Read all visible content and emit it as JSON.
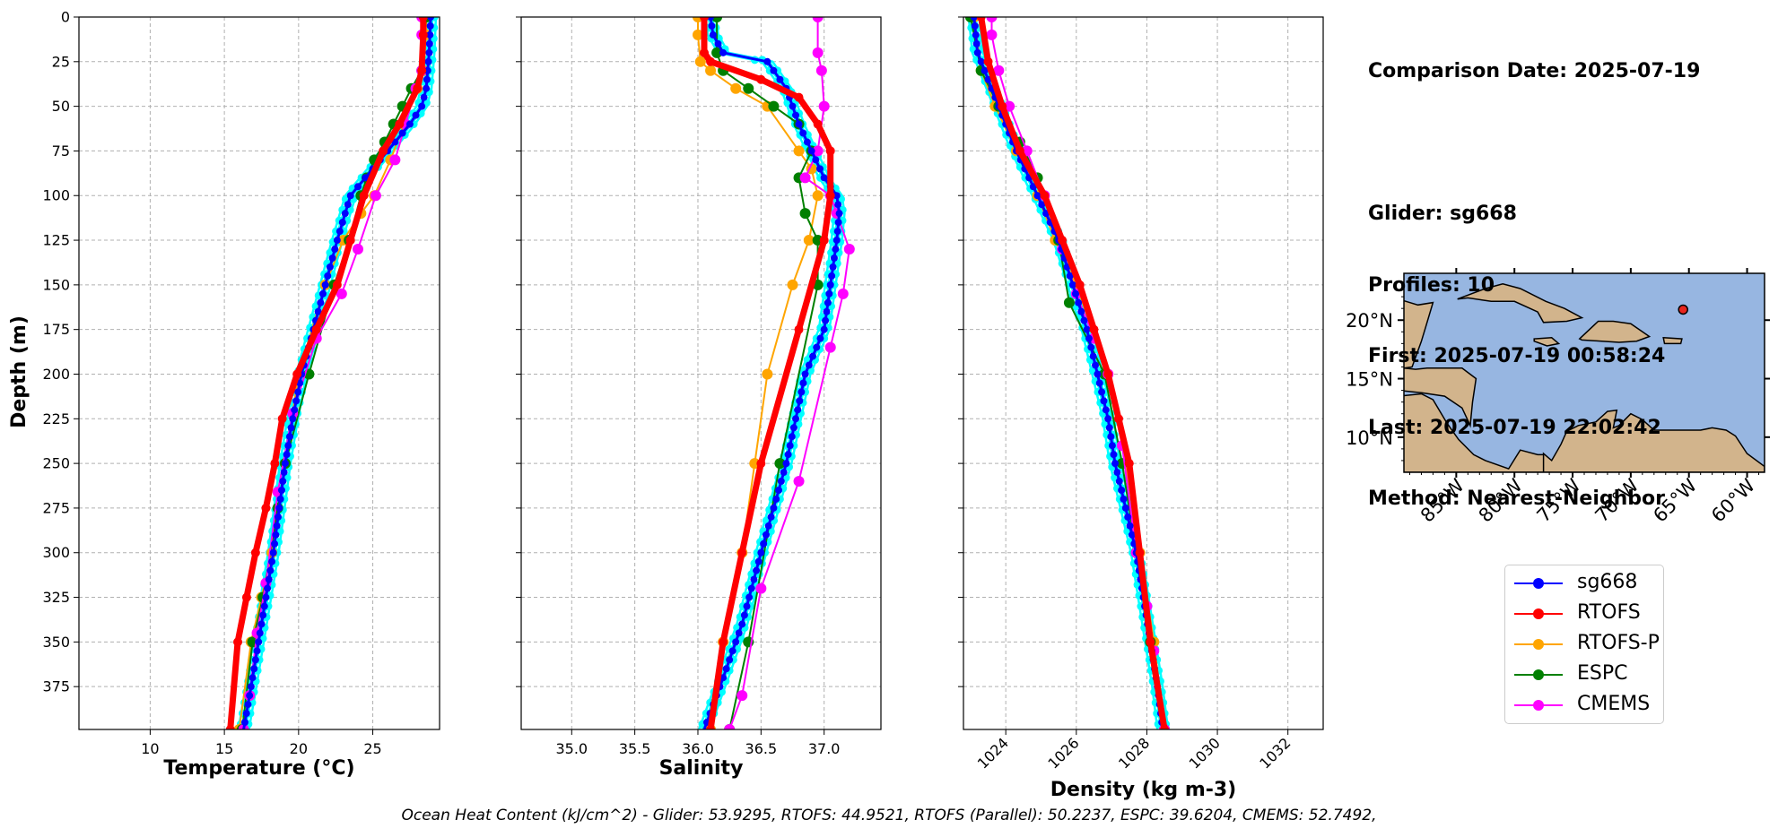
{
  "colors": {
    "sg668": "#0000ff",
    "sg668_profiles": "#00ffff",
    "RTOFS": "#ff0000",
    "RTOFS-P": "#ffa500",
    "ESPC": "#008000",
    "CMEMS": "#ff00ff",
    "grid": "#b0b0b0",
    "ocean": "#97b6e1",
    "land": "#d2b48c"
  },
  "info": {
    "comparison_date": "Comparison Date: 2025-07-19",
    "glider": "Glider: sg668",
    "profiles": "Profiles: 10",
    "first": "First: 2025-07-19 00:58:24",
    "last": "Last: 2025-07-19 22:02:42",
    "method": "Method: Nearest-Neighbor"
  },
  "ohc_text": "Ocean Heat Content (kJ/cm^2) - Glider: 53.9295,  RTOFS: 44.9521,  RTOFS (Parallel): 50.2237,  ESPC: 39.6204,  CMEMS: 52.7492,",
  "legend": [
    "sg668",
    "RTOFS",
    "RTOFS-P",
    "ESPC",
    "CMEMS"
  ],
  "map": {
    "lat_ticks": [
      "20°N",
      "15°N",
      "10°N"
    ],
    "lon_ticks": [
      "85°W",
      "80°W",
      "75°W",
      "70°W",
      "65°W",
      "60°W"
    ],
    "lon_range": [
      -89.5,
      -58.5
    ],
    "lat_range": [
      7,
      24
    ],
    "glider_position": {
      "lon": -65.5,
      "lat": 20.9
    }
  },
  "chart_data": [
    {
      "type": "line",
      "xlabel": "Temperature (°C)",
      "ylabel": "Depth (m)",
      "xlim": [
        5.2,
        29.5
      ],
      "ylim": [
        399,
        0
      ],
      "xticks": [
        10,
        15,
        20,
        25
      ],
      "yticks": [
        0,
        25,
        50,
        75,
        100,
        125,
        150,
        175,
        200,
        225,
        250,
        275,
        300,
        325,
        350,
        375
      ],
      "grid": true,
      "series": [
        {
          "name": "sg668",
          "x": [
            28.9,
            28.8,
            28.6,
            28.3,
            27.5,
            26.5,
            25.5,
            24.5,
            23.5,
            22.6,
            21.8,
            21.0,
            20.2,
            19.6,
            19.1,
            18.7,
            18.3,
            17.8,
            17.3,
            16.8,
            16.3
          ],
          "y": [
            0,
            20,
            40,
            50,
            60,
            70,
            80,
            90,
            100,
            125,
            150,
            175,
            200,
            225,
            250,
            275,
            300,
            325,
            350,
            375,
            399
          ]
        },
        {
          "name": "RTOFS",
          "x": [
            28.4,
            28.4,
            28.3,
            28.0,
            26.8,
            25.7,
            24.4,
            23.5,
            22.6,
            21.2,
            19.9,
            18.9,
            18.4,
            17.8,
            17.1,
            16.5,
            15.9,
            15.4
          ],
          "y": [
            0,
            10,
            30,
            40,
            60,
            75,
            100,
            125,
            150,
            175,
            200,
            225,
            250,
            275,
            300,
            325,
            350,
            399
          ]
        },
        {
          "name": "RTOFS-P",
          "x": [
            28.6,
            28.6,
            28.4,
            28.0,
            27.1,
            26.2,
            25.1,
            24.2,
            23.0,
            21.8,
            20.0,
            19.1,
            18.2,
            17.5,
            16.8,
            16.0
          ],
          "y": [
            0,
            10,
            30,
            40,
            60,
            80,
            100,
            110,
            125,
            150,
            200,
            250,
            300,
            325,
            350,
            399
          ]
        },
        {
          "name": "ESPC",
          "x": [
            28.6,
            28.3,
            27.6,
            27.0,
            26.4,
            25.8,
            25.1,
            24.6,
            24.2,
            23.4,
            22.4,
            20.7,
            19.1,
            18.6,
            17.6,
            16.9,
            16.2
          ],
          "y": [
            0,
            30,
            40,
            50,
            60,
            70,
            80,
            90,
            100,
            125,
            150,
            200,
            250,
            275,
            325,
            350,
            399
          ]
        },
        {
          "name": "CMEMS",
          "x": [
            28.3,
            28.3,
            28.3,
            27.9,
            27.2,
            26.5,
            25.2,
            24.0,
            22.9,
            21.2,
            19.6,
            18.6,
            17.8,
            17.2,
            16.7,
            16.3
          ],
          "y": [
            0,
            10,
            30,
            40,
            60,
            80,
            100,
            130,
            155,
            180,
            222,
            266,
            317,
            345,
            380,
            399
          ]
        }
      ]
    },
    {
      "type": "line",
      "xlabel": "Salinity",
      "xlim": [
        34.6,
        37.45
      ],
      "ylim": [
        399,
        0
      ],
      "xticks": [
        35.0,
        35.5,
        36.0,
        36.5,
        37.0
      ],
      "yticks": [
        0,
        25,
        50,
        75,
        100,
        125,
        150,
        175,
        200,
        225,
        250,
        275,
        300,
        325,
        350,
        375
      ],
      "grid": true,
      "series": [
        {
          "name": "sg668",
          "x": [
            36.1,
            36.12,
            36.2,
            36.55,
            36.7,
            36.8,
            36.9,
            37.0,
            37.1,
            37.12,
            37.1,
            37.0,
            36.85,
            36.7,
            36.6,
            36.5,
            36.35,
            36.2,
            36.05
          ],
          "y": [
            0,
            10,
            20,
            25,
            40,
            60,
            75,
            90,
            100,
            110,
            125,
            175,
            200,
            250,
            275,
            300,
            340,
            370,
            399
          ]
        },
        {
          "name": "RTOFS",
          "x": [
            36.05,
            36.05,
            36.1,
            36.5,
            36.8,
            36.95,
            37.05,
            37.05,
            37.0,
            36.8,
            36.5,
            36.35,
            36.2,
            36.1
          ],
          "y": [
            0,
            20,
            25,
            35,
            45,
            60,
            75,
            100,
            125,
            175,
            250,
            300,
            350,
            399
          ]
        },
        {
          "name": "RTOFS-P",
          "x": [
            36.0,
            36.0,
            36.02,
            36.1,
            36.3,
            36.55,
            36.8,
            36.9,
            36.95,
            36.88,
            36.75,
            36.55,
            36.45,
            36.35,
            36.2,
            36.1
          ],
          "y": [
            0,
            10,
            25,
            30,
            40,
            50,
            75,
            85,
            100,
            125,
            150,
            200,
            250,
            300,
            350,
            399
          ]
        },
        {
          "name": "ESPC",
          "x": [
            36.15,
            36.15,
            36.2,
            36.4,
            36.6,
            36.8,
            36.9,
            36.8,
            36.85,
            36.95,
            36.95,
            36.65,
            36.4,
            36.25
          ],
          "y": [
            0,
            20,
            30,
            40,
            50,
            60,
            75,
            90,
            110,
            125,
            150,
            250,
            350,
            399
          ]
        },
        {
          "name": "CMEMS",
          "x": [
            36.95,
            36.95,
            36.98,
            37.0,
            36.95,
            36.85,
            37.05,
            37.1,
            37.2,
            37.15,
            37.05,
            36.8,
            36.5,
            36.35,
            36.25
          ],
          "y": [
            0,
            20,
            30,
            50,
            75,
            90,
            100,
            110,
            130,
            155,
            185,
            260,
            320,
            380,
            399
          ]
        }
      ]
    },
    {
      "type": "line",
      "xlabel": "Density (kg m-3)",
      "xlim": [
        1022.8,
        1033.0
      ],
      "ylim": [
        399,
        0
      ],
      "xticks": [
        1024,
        1026,
        1028,
        1030,
        1032
      ],
      "yticks": [
        0,
        25,
        50,
        75,
        100,
        125,
        150,
        175,
        200,
        225,
        250,
        275,
        300,
        325,
        350,
        375
      ],
      "grid": true,
      "series": [
        {
          "name": "sg668",
          "x": [
            1023.1,
            1023.2,
            1023.4,
            1023.8,
            1024.3,
            1024.9,
            1025.5,
            1025.9,
            1026.3,
            1026.6,
            1026.9,
            1027.1,
            1027.4,
            1027.7,
            1027.9,
            1028.1,
            1028.3,
            1028.45
          ],
          "y": [
            0,
            20,
            30,
            50,
            75,
            100,
            125,
            150,
            175,
            200,
            225,
            250,
            275,
            300,
            325,
            350,
            375,
            399
          ]
        },
        {
          "name": "RTOFS",
          "x": [
            1023.3,
            1023.5,
            1023.9,
            1024.4,
            1025.1,
            1025.6,
            1026.1,
            1026.5,
            1026.9,
            1027.2,
            1027.5,
            1027.8,
            1028.1,
            1028.5
          ],
          "y": [
            0,
            25,
            50,
            75,
            100,
            125,
            150,
            175,
            200,
            225,
            250,
            300,
            350,
            399
          ]
        },
        {
          "name": "RTOFS-P",
          "x": [
            1023.1,
            1023.3,
            1023.7,
            1024.3,
            1024.9,
            1025.4,
            1026.0,
            1026.9,
            1027.4,
            1027.8,
            1028.2,
            1028.5
          ],
          "y": [
            0,
            30,
            50,
            75,
            100,
            125,
            150,
            200,
            250,
            300,
            350,
            399
          ]
        },
        {
          "name": "ESPC",
          "x": [
            1023.0,
            1023.3,
            1023.8,
            1024.4,
            1024.9,
            1025.5,
            1025.8,
            1026.8,
            1027.3,
            1027.7,
            1028.1,
            1028.5
          ],
          "y": [
            0,
            30,
            50,
            70,
            90,
            125,
            160,
            200,
            250,
            300,
            350,
            399
          ]
        },
        {
          "name": "CMEMS",
          "x": [
            1023.6,
            1023.6,
            1023.8,
            1024.1,
            1024.6,
            1025.1,
            1025.6,
            1026.0,
            1026.5,
            1026.9,
            1027.3,
            1027.7,
            1028.0,
            1028.2,
            1028.5
          ],
          "y": [
            0,
            10,
            30,
            50,
            75,
            100,
            130,
            155,
            180,
            200,
            240,
            300,
            330,
            355,
            399
          ]
        }
      ]
    }
  ]
}
